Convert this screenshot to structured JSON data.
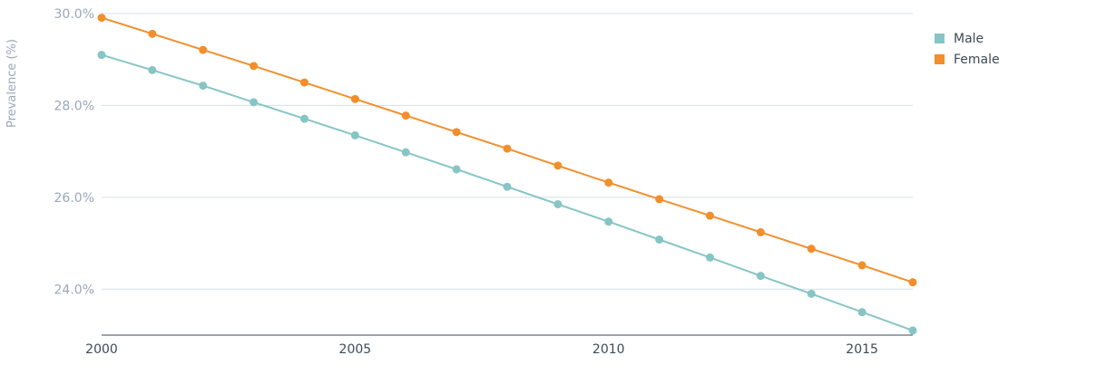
{
  "chart_data": {
    "type": "line",
    "title": "",
    "xlabel": "",
    "ylabel": "Prevalence (%)",
    "x": [
      2000,
      2001,
      2002,
      2003,
      2004,
      2005,
      2006,
      2007,
      2008,
      2009,
      2010,
      2011,
      2012,
      2013,
      2014,
      2015,
      2016
    ],
    "xlim": [
      2000,
      2016
    ],
    "ylim": [
      23.0,
      30.0
    ],
    "x_ticks": [
      2000,
      2005,
      2010,
      2015
    ],
    "x_tick_labels": [
      "2000",
      "2005",
      "2010",
      "2015"
    ],
    "y_ticks": [
      24,
      26,
      28,
      30
    ],
    "y_tick_labels": [
      "24.0%",
      "26.0%",
      "28.0%",
      "30.0%"
    ],
    "grid": true,
    "legend_position": "top-right",
    "series": [
      {
        "name": "Male",
        "color": "#87c5c5",
        "values": [
          29.1,
          28.77,
          28.43,
          28.07,
          27.71,
          27.35,
          26.98,
          26.61,
          26.23,
          25.85,
          25.47,
          25.08,
          24.69,
          24.29,
          23.9,
          23.5,
          23.1
        ]
      },
      {
        "name": "Female",
        "color": "#f28f2c",
        "values": [
          29.91,
          29.56,
          29.21,
          28.86,
          28.5,
          28.14,
          27.78,
          27.42,
          27.06,
          26.69,
          26.32,
          25.96,
          25.6,
          25.24,
          24.88,
          24.52,
          24.15
        ]
      }
    ]
  }
}
